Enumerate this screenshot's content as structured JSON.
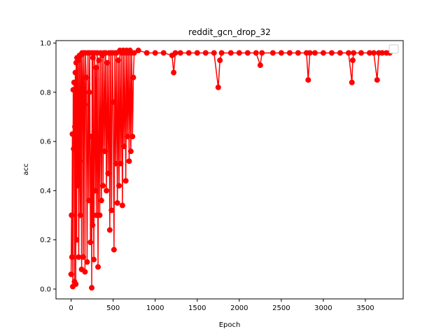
{
  "chart_data": {
    "type": "line",
    "title": "reddit_gcn_drop_32",
    "xlabel": "Epoch",
    "ylabel": "acc",
    "xlim": [
      -180,
      3950
    ],
    "ylim": [
      -0.04,
      1.01
    ],
    "x_ticks": [
      0,
      500,
      1000,
      1500,
      2000,
      2500,
      3000,
      3500
    ],
    "y_ticks": [
      0.0,
      0.2,
      0.4,
      0.6,
      0.8,
      1.0
    ],
    "x_tick_labels": [
      "0",
      "500",
      "1000",
      "1500",
      "2000",
      "2500",
      "3000",
      "3500"
    ],
    "y_tick_labels": [
      "0.0",
      "0.2",
      "0.4",
      "0.6",
      "0.8",
      "1.0"
    ],
    "grid": false,
    "legend": "top-right (empty)",
    "series": [
      {
        "color": "#ff0000",
        "marker": "circle",
        "points": [
          [
            0,
            0.06
          ],
          [
            5,
            0.3
          ],
          [
            10,
            0.13
          ],
          [
            15,
            0.63
          ],
          [
            20,
            0.01
          ],
          [
            25,
            0.81
          ],
          [
            30,
            0.57
          ],
          [
            35,
            0.84
          ],
          [
            40,
            0.03
          ],
          [
            45,
            0.66
          ],
          [
            50,
            0.88
          ],
          [
            55,
            0.02
          ],
          [
            60,
            0.92
          ],
          [
            65,
            0.2
          ],
          [
            70,
            0.94
          ],
          [
            75,
            0.42
          ],
          [
            80,
            0.8
          ],
          [
            85,
            0.93
          ],
          [
            90,
            0.13
          ],
          [
            95,
            0.47
          ],
          [
            100,
            0.95
          ],
          [
            105,
            0.52
          ],
          [
            110,
            0.3
          ],
          [
            115,
            0.95
          ],
          [
            120,
            0.75
          ],
          [
            125,
            0.08
          ],
          [
            130,
            0.96
          ],
          [
            140,
            0.81
          ],
          [
            145,
            0.13
          ],
          [
            150,
            0.96
          ],
          [
            160,
            0.75
          ],
          [
            165,
            0.07
          ],
          [
            170,
            0.96
          ],
          [
            180,
            0.86
          ],
          [
            190,
            0.11
          ],
          [
            200,
            0.96
          ],
          [
            210,
            0.36
          ],
          [
            215,
            0.8
          ],
          [
            220,
            0.96
          ],
          [
            230,
            0.19
          ],
          [
            240,
            0.62
          ],
          [
            245,
            0.005
          ],
          [
            250,
            0.96
          ],
          [
            255,
            0.26
          ],
          [
            260,
            0.94
          ],
          [
            270,
            0.12
          ],
          [
            280,
            0.96
          ],
          [
            290,
            0.4
          ],
          [
            295,
            0.9
          ],
          [
            300,
            0.3
          ],
          [
            310,
            0.96
          ],
          [
            320,
            0.09
          ],
          [
            330,
            0.93
          ],
          [
            340,
            0.3
          ],
          [
            350,
            0.96
          ],
          [
            360,
            0.36
          ],
          [
            370,
            0.95
          ],
          [
            380,
            0.42
          ],
          [
            390,
            0.96
          ],
          [
            400,
            0.56
          ],
          [
            410,
            0.96
          ],
          [
            420,
            0.4
          ],
          [
            430,
            0.92
          ],
          [
            440,
            0.47
          ],
          [
            450,
            0.96
          ],
          [
            460,
            0.24
          ],
          [
            470,
            0.96
          ],
          [
            480,
            0.32
          ],
          [
            490,
            0.96
          ],
          [
            500,
            0.76
          ],
          [
            510,
            0.16
          ],
          [
            520,
            0.96
          ],
          [
            530,
            0.51
          ],
          [
            540,
            0.96
          ],
          [
            550,
            0.35
          ],
          [
            560,
            0.93
          ],
          [
            570,
            0.42
          ],
          [
            580,
            0.97
          ],
          [
            590,
            0.51
          ],
          [
            600,
            0.96
          ],
          [
            610,
            0.34
          ],
          [
            620,
            0.97
          ],
          [
            630,
            0.58
          ],
          [
            640,
            0.96
          ],
          [
            650,
            0.44
          ],
          [
            660,
            0.97
          ],
          [
            670,
            0.62
          ],
          [
            680,
            0.96
          ],
          [
            690,
            0.52
          ],
          [
            700,
            0.97
          ],
          [
            710,
            0.56
          ],
          [
            720,
            0.96
          ],
          [
            730,
            0.62
          ],
          [
            740,
            0.86
          ],
          [
            750,
            0.96
          ],
          [
            800,
            0.97
          ],
          [
            900,
            0.96
          ],
          [
            1000,
            0.96
          ],
          [
            1100,
            0.96
          ],
          [
            1200,
            0.95
          ],
          [
            1220,
            0.88
          ],
          [
            1240,
            0.96
          ],
          [
            1300,
            0.96
          ],
          [
            1400,
            0.96
          ],
          [
            1500,
            0.96
          ],
          [
            1600,
            0.96
          ],
          [
            1700,
            0.96
          ],
          [
            1750,
            0.82
          ],
          [
            1770,
            0.93
          ],
          [
            1790,
            0.96
          ],
          [
            1900,
            0.96
          ],
          [
            2000,
            0.96
          ],
          [
            2100,
            0.96
          ],
          [
            2200,
            0.96
          ],
          [
            2250,
            0.91
          ],
          [
            2270,
            0.96
          ],
          [
            2400,
            0.96
          ],
          [
            2500,
            0.96
          ],
          [
            2600,
            0.96
          ],
          [
            2700,
            0.96
          ],
          [
            2800,
            0.96
          ],
          [
            2820,
            0.85
          ],
          [
            2840,
            0.96
          ],
          [
            2900,
            0.96
          ],
          [
            3000,
            0.96
          ],
          [
            3100,
            0.96
          ],
          [
            3200,
            0.96
          ],
          [
            3300,
            0.96
          ],
          [
            3340,
            0.84
          ],
          [
            3350,
            0.93
          ],
          [
            3360,
            0.96
          ],
          [
            3450,
            0.96
          ],
          [
            3550,
            0.96
          ],
          [
            3600,
            0.96
          ],
          [
            3640,
            0.85
          ],
          [
            3660,
            0.96
          ],
          [
            3700,
            0.96
          ],
          [
            3750,
            0.96
          ],
          [
            3790,
            0.96
          ]
        ]
      }
    ]
  }
}
